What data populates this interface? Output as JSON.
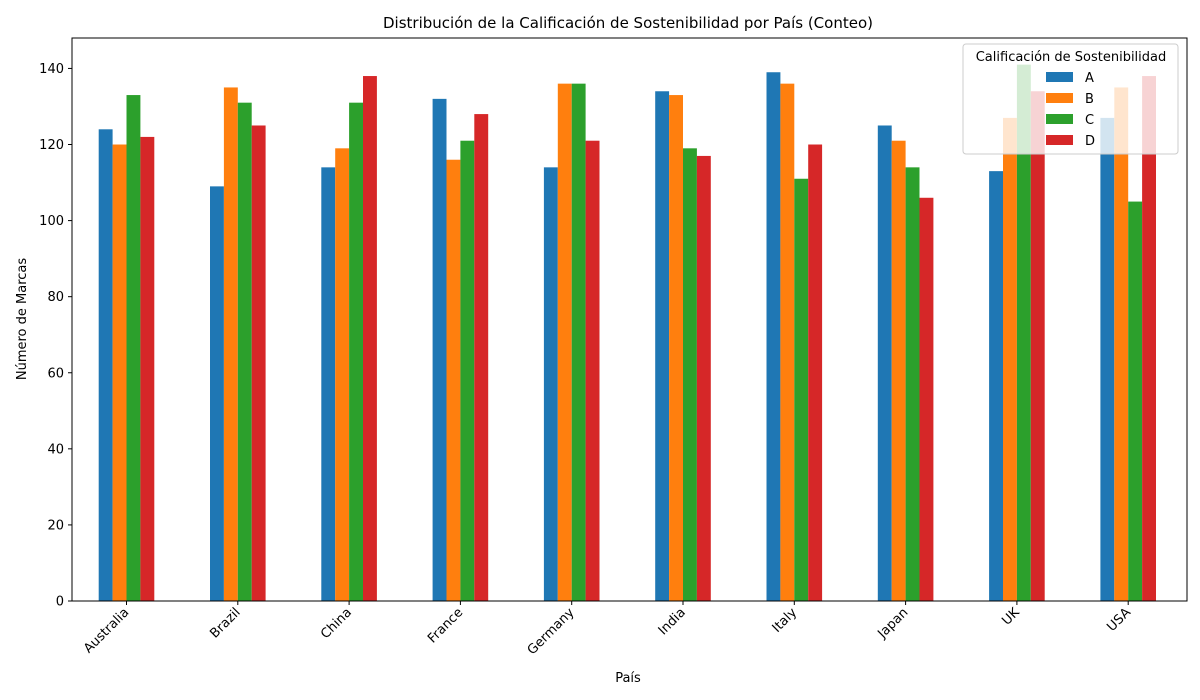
{
  "chart_data": {
    "type": "bar",
    "title": "Distribución de la Calificación de Sostenibilidad por País (Conteo)",
    "xlabel": "País",
    "ylabel": "Número de Marcas",
    "ylim": [
      0,
      148
    ],
    "yticks": [
      0,
      20,
      40,
      60,
      80,
      100,
      120,
      140
    ],
    "grid": false,
    "legend_title": "Calificación de Sostenibilidad",
    "legend_position": "top-right",
    "categories": [
      "Australia",
      "Brazil",
      "China",
      "France",
      "Germany",
      "India",
      "Italy",
      "Japan",
      "UK",
      "USA"
    ],
    "series": [
      {
        "name": "A",
        "color": "#1f77b4",
        "values": [
          124,
          109,
          114,
          132,
          114,
          134,
          139,
          125,
          113,
          127
        ]
      },
      {
        "name": "B",
        "color": "#ff7f0e",
        "values": [
          120,
          135,
          119,
          116,
          136,
          133,
          136,
          121,
          127,
          135
        ]
      },
      {
        "name": "C",
        "color": "#2ca02c",
        "values": [
          133,
          131,
          131,
          121,
          136,
          119,
          111,
          114,
          141,
          105
        ]
      },
      {
        "name": "D",
        "color": "#d62728",
        "values": [
          122,
          125,
          138,
          128,
          121,
          117,
          120,
          106,
          134,
          138
        ]
      }
    ]
  }
}
